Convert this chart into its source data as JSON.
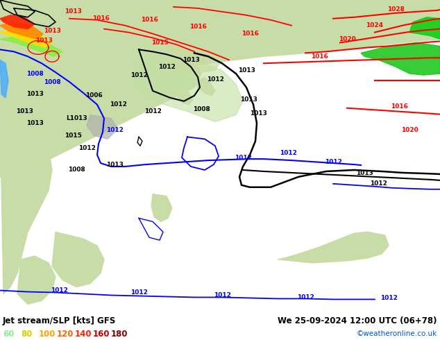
{
  "title_left": "Jet stream/SLP [kts] GFS",
  "title_right": "We 25-09-2024 12:00 UTC (06+78)",
  "credit": "©weatheronline.co.uk",
  "legend_values": [
    "60",
    "80",
    "100",
    "120",
    "140",
    "160",
    "180"
  ],
  "legend_colors": [
    "#90ee90",
    "#d4d400",
    "#ffa500",
    "#ff6600",
    "#ff2200",
    "#cc0000",
    "#880000"
  ],
  "figsize": [
    6.34,
    4.9
  ],
  "dpi": 100,
  "ocean_color": "#f0f0f0",
  "land_green_light": "#c8dca8",
  "land_green_mid": "#b0cc90",
  "land_green_dark": "#50b050",
  "land_gray": "#b8b8b8",
  "jet_green_light": "#90d890",
  "jet_green_bright": "#20cc20"
}
